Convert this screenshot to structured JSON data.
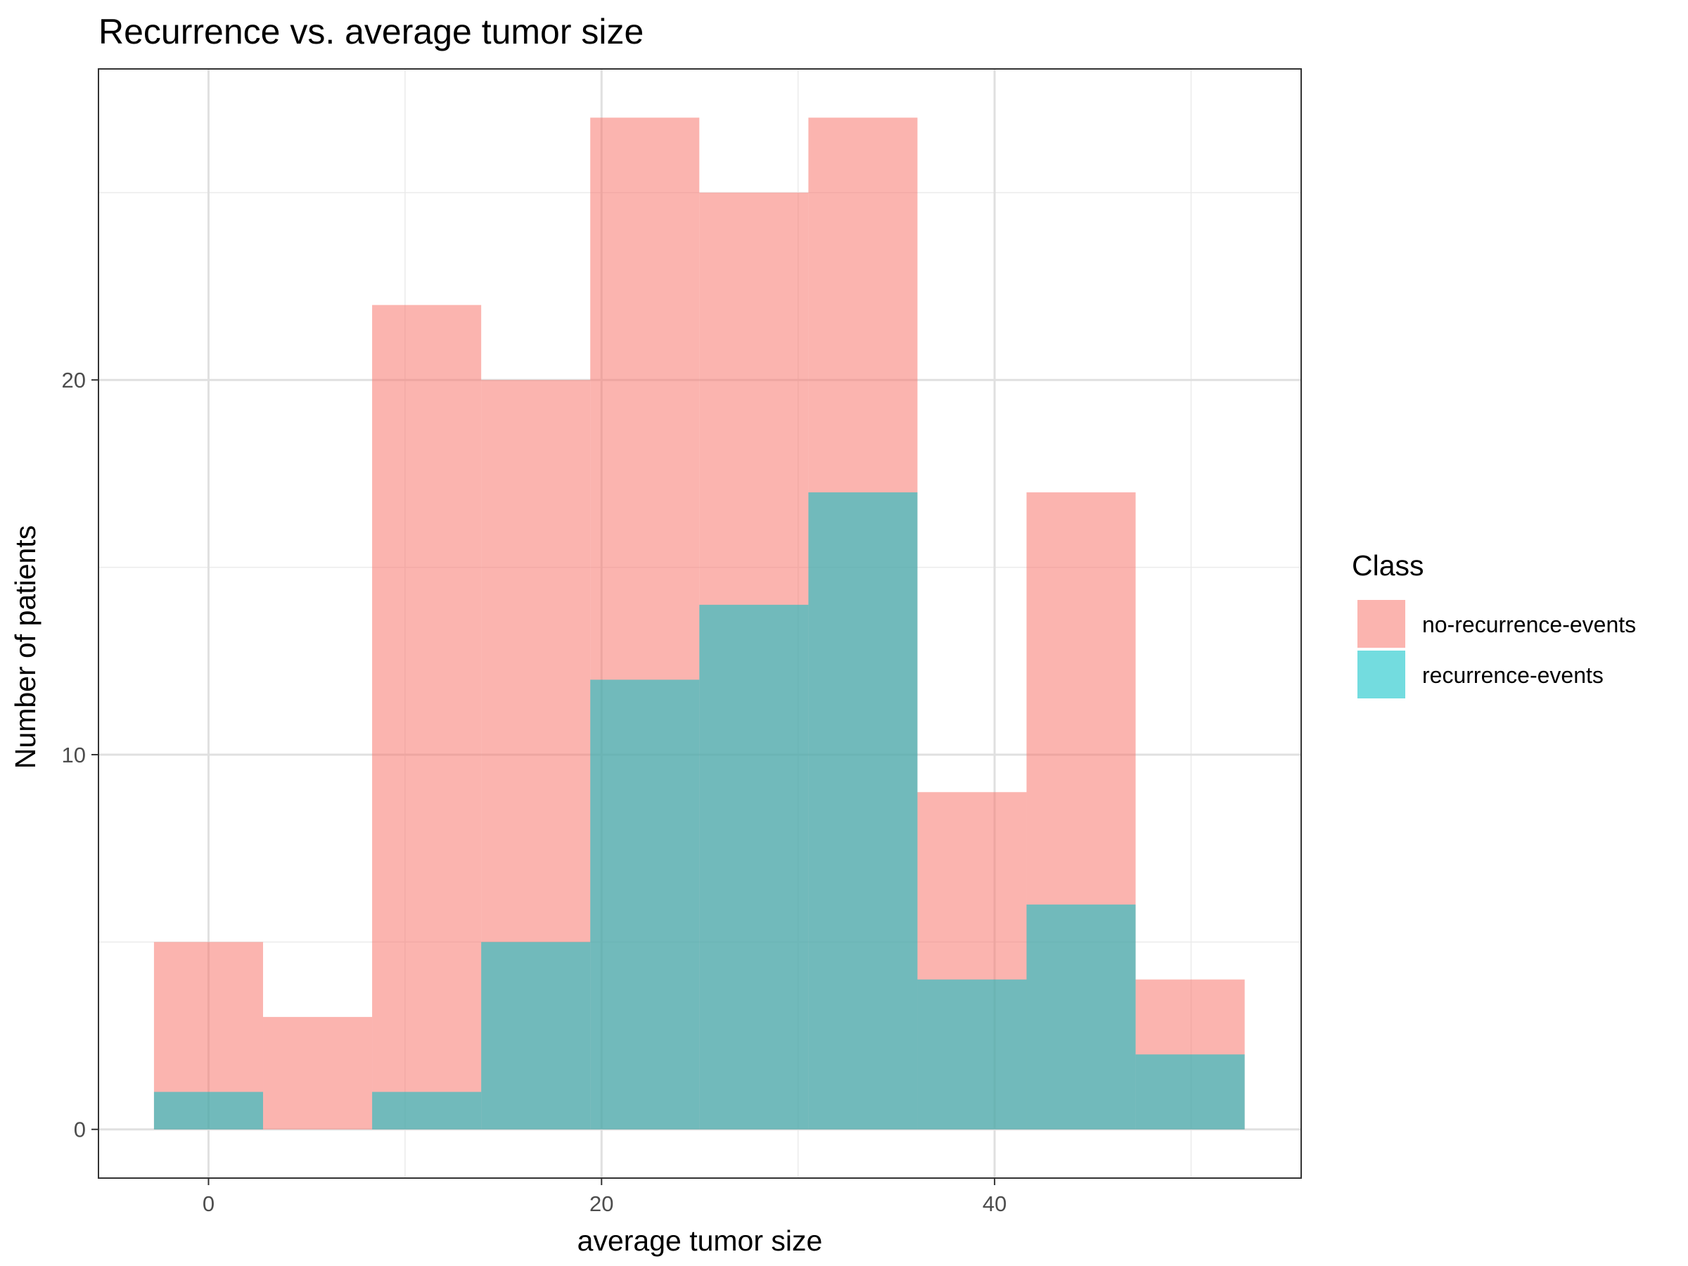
{
  "chart_data": {
    "type": "bar",
    "subtype": "overlapping-histogram",
    "title": "Recurrence vs. average tumor size",
    "xlabel": "average tumor size",
    "ylabel": "Number of patients",
    "xlim": [
      -5.6,
      55.6
    ],
    "ylim": [
      -1.3,
      28.3
    ],
    "x_ticks": [
      0,
      20,
      40
    ],
    "y_ticks": [
      0,
      10,
      20
    ],
    "x_tick_labels": [
      "0",
      "20",
      "40"
    ],
    "y_tick_labels": [
      "0",
      "10",
      "20"
    ],
    "bin_width": 5.55,
    "bin_centers": [
      0,
      5.55,
      11.1,
      16.65,
      22.2,
      27.75,
      33.3,
      38.85,
      44.4,
      49.95
    ],
    "series": [
      {
        "name": "no-recurrence-events",
        "color": "#F8766D",
        "values": [
          5,
          3,
          22,
          20,
          27,
          25,
          27,
          9,
          17,
          4
        ]
      },
      {
        "name": "recurrence-events",
        "color": "#00BFC4",
        "values": [
          1,
          0,
          1,
          5,
          12,
          14,
          17,
          4,
          6,
          2
        ]
      }
    ],
    "fill_opacity": 0.55,
    "legend": {
      "title": "Class",
      "position": "right"
    },
    "grid": true
  }
}
